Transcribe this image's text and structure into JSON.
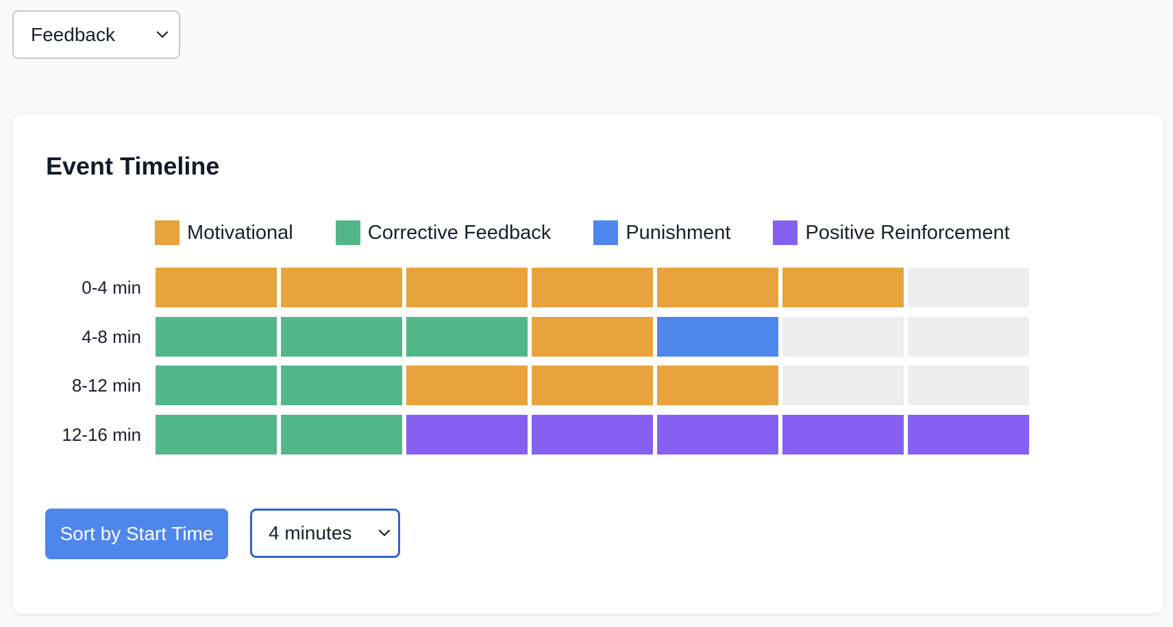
{
  "category_select": {
    "value": "Feedback"
  },
  "card": {
    "title": "Event Timeline"
  },
  "legend": [
    {
      "label": "Motivational",
      "color": "#e8a33d"
    },
    {
      "label": "Corrective Feedback",
      "color": "#52b788"
    },
    {
      "label": "Punishment",
      "color": "#4f86ec"
    },
    {
      "label": "Positive Reinforcement",
      "color": "#8660f0"
    }
  ],
  "empty_color": "#eeeeee",
  "chart_data": {
    "type": "table",
    "legend_placement": "top",
    "categories": [
      "Motivational",
      "Corrective Feedback",
      "Punishment",
      "Positive Reinforcement"
    ],
    "rows": [
      {
        "label": "0-4 min",
        "cells": [
          "Motivational",
          "Motivational",
          "Motivational",
          "Motivational",
          "Motivational",
          "Motivational",
          null
        ]
      },
      {
        "label": "4-8 min",
        "cells": [
          "Corrective Feedback",
          "Corrective Feedback",
          "Corrective Feedback",
          "Motivational",
          "Punishment",
          null,
          null
        ]
      },
      {
        "label": "8-12 min",
        "cells": [
          "Corrective Feedback",
          "Corrective Feedback",
          "Motivational",
          "Motivational",
          "Motivational",
          null,
          null
        ]
      },
      {
        "label": "12-16 min",
        "cells": [
          "Corrective Feedback",
          "Corrective Feedback",
          "Positive Reinforcement",
          "Positive Reinforcement",
          "Positive Reinforcement",
          "Positive Reinforcement",
          "Positive Reinforcement"
        ]
      }
    ]
  },
  "controls": {
    "sort_label": "Sort by Start Time",
    "interval_value": "4 minutes"
  }
}
